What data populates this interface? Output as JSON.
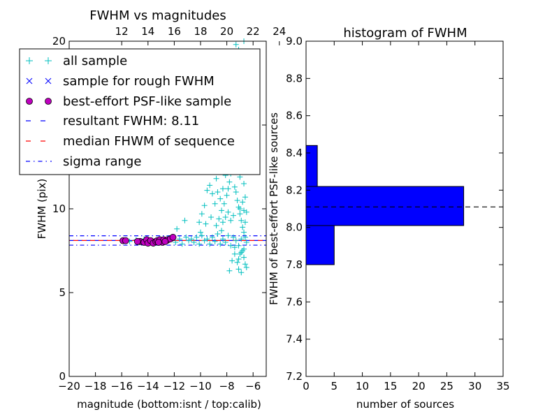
{
  "chart_data": [
    {
      "type": "scatter",
      "title": "FWHM vs magnitudes",
      "xlabel": "magnitude (bottom:isnt / top:calib)",
      "ylabel": "FWHM (pix)",
      "xlim": [
        -20,
        -5
      ],
      "ylim": [
        0,
        20
      ],
      "xticks": [
        -20,
        -18,
        -16,
        -14,
        -12,
        -10,
        -8,
        -6
      ],
      "xtick_labels": [
        "−20",
        "−18",
        "−16",
        "−14",
        "−12",
        "−10",
        "−8",
        "−6"
      ],
      "yticks": [
        0,
        5,
        10,
        15,
        20
      ],
      "ytick_labels": [
        "0",
        "5",
        "10",
        "15",
        "20"
      ],
      "top_axis": {
        "offset": 28,
        "ticks": [
          12,
          14,
          16,
          18,
          20,
          22,
          24
        ],
        "tick_labels": [
          "12",
          "14",
          "16",
          "18",
          "20",
          "22",
          "24"
        ]
      },
      "grid": false,
      "legend_position": "top-left",
      "legend": [
        {
          "label": "all sample",
          "marker": "+",
          "color": "#00bfbf"
        },
        {
          "label": "sample for rough FWHM",
          "marker": "x",
          "color": "#0000ff"
        },
        {
          "label": "best-effort PSF-like sample",
          "marker": "o",
          "color": "#bf00bf"
        },
        {
          "label": "resultant FWHM: 8.11",
          "line": "dashed",
          "color": "#0000ff"
        },
        {
          "label": "median FHWM of sequence",
          "line": "dashed",
          "color": "#ff0000"
        },
        {
          "label": "sigma range",
          "line": "dashdot",
          "color": "#0000ff"
        }
      ],
      "hlines": {
        "resultant_fwhm": 8.11,
        "median_fwhm": 8.11,
        "sigma_range": [
          7.83,
          8.39
        ]
      },
      "series": [
        {
          "name": "all sample",
          "color": "#00bfbf",
          "marker": "+",
          "points": [
            [
              -15.9,
              8.1
            ],
            [
              -15.4,
              8.05
            ],
            [
              -14.9,
              8.15
            ],
            [
              -14.6,
              8.0
            ],
            [
              -14.3,
              8.2
            ],
            [
              -14.0,
              8.05
            ],
            [
              -13.7,
              8.1
            ],
            [
              -13.4,
              8.1
            ],
            [
              -13.1,
              8.2
            ],
            [
              -12.8,
              8.15
            ],
            [
              -12.5,
              8.25
            ],
            [
              -12.2,
              8.3
            ],
            [
              -11.9,
              8.0
            ],
            [
              -11.6,
              8.2
            ],
            [
              -11.4,
              7.9
            ],
            [
              -11.1,
              8.3
            ],
            [
              -10.9,
              8.1
            ],
            [
              -10.7,
              8.2
            ],
            [
              -10.5,
              8.0
            ],
            [
              -10.3,
              8.3
            ],
            [
              -10.1,
              7.9
            ],
            [
              -9.9,
              8.4
            ],
            [
              -9.7,
              8.1
            ],
            [
              -9.5,
              8.2
            ],
            [
              -9.3,
              7.9
            ],
            [
              -9.1,
              8.3
            ],
            [
              -8.9,
              8.05
            ],
            [
              -8.7,
              8.5
            ],
            [
              -8.5,
              7.9
            ],
            [
              -8.3,
              8.2
            ],
            [
              -8.1,
              8.0
            ],
            [
              -7.9,
              8.4
            ],
            [
              -7.7,
              7.8
            ],
            [
              -7.5,
              8.3
            ],
            [
              -7.3,
              8.1
            ],
            [
              -7.1,
              7.8
            ],
            [
              -6.9,
              8.2
            ],
            [
              -6.8,
              7.5
            ],
            [
              -6.7,
              7.1
            ],
            [
              -6.6,
              6.7
            ],
            [
              -7.0,
              7.3
            ],
            [
              -7.2,
              6.8
            ],
            [
              -7.4,
              7.7
            ],
            [
              -7.6,
              6.9
            ],
            [
              -7.8,
              6.3
            ],
            [
              -6.5,
              6.5
            ],
            [
              -6.9,
              6.2
            ],
            [
              -7.1,
              6.4
            ],
            [
              -11.8,
              8.8
            ],
            [
              -11.2,
              9.3
            ],
            [
              -10.0,
              8.6
            ],
            [
              -9.6,
              9.1
            ],
            [
              -9.2,
              9.5
            ],
            [
              -8.8,
              9.0
            ],
            [
              -8.6,
              9.4
            ],
            [
              -8.4,
              9.9
            ],
            [
              -8.2,
              10.3
            ],
            [
              -8.0,
              10.8
            ],
            [
              -7.9,
              11.2
            ],
            [
              -7.8,
              11.6
            ],
            [
              -7.7,
              12.1
            ],
            [
              -7.6,
              12.5
            ],
            [
              -7.5,
              12.9
            ],
            [
              -7.4,
              11.3
            ],
            [
              -7.3,
              11.0
            ],
            [
              -7.2,
              10.5
            ],
            [
              -7.1,
              10.1
            ],
            [
              -7.0,
              9.7
            ],
            [
              -6.9,
              9.3
            ],
            [
              -6.8,
              8.9
            ],
            [
              -6.7,
              8.6
            ],
            [
              -6.6,
              9.2
            ],
            [
              -6.5,
              9.8
            ],
            [
              -7.3,
              12.4
            ],
            [
              -7.1,
              12.8
            ],
            [
              -6.9,
              13.2
            ],
            [
              -6.8,
              12.2
            ],
            [
              -6.7,
              11.5
            ],
            [
              -6.6,
              10.7
            ],
            [
              -7.8,
              13.5
            ],
            [
              -7.6,
              14.0
            ],
            [
              -7.4,
              13.7
            ],
            [
              -7.2,
              13.1
            ],
            [
              -7.0,
              11.9
            ],
            [
              -8.1,
              12.0
            ],
            [
              -8.3,
              11.2
            ],
            [
              -8.5,
              10.6
            ],
            [
              -8.7,
              11.0
            ],
            [
              -8.9,
              10.3
            ],
            [
              -9.1,
              10.9
            ],
            [
              -9.3,
              11.4
            ],
            [
              -9.5,
              11.1
            ],
            [
              -9.7,
              10.2
            ],
            [
              -9.9,
              9.7
            ],
            [
              -10.1,
              9.2
            ],
            [
              -8.0,
              13.0
            ],
            [
              -7.9,
              13.8
            ],
            [
              -7.7,
              14.5
            ],
            [
              -7.5,
              14.9
            ],
            [
              -7.3,
              14.3
            ],
            [
              -7.1,
              14.6
            ],
            [
              -6.9,
              14.1
            ],
            [
              -7.6,
              15.4
            ],
            [
              -7.4,
              15.8
            ],
            [
              -7.2,
              15.1
            ],
            [
              -7.8,
              15.6
            ],
            [
              -8.0,
              14.4
            ],
            [
              -8.2,
              13.2
            ],
            [
              -8.4,
              12.6
            ],
            [
              -8.6,
              12.3
            ],
            [
              -8.8,
              11.8
            ],
            [
              -7.0,
              10.0
            ],
            [
              -6.8,
              10.4
            ],
            [
              -6.7,
              9.9
            ],
            [
              -7.5,
              9.6
            ],
            [
              -7.7,
              9.3
            ],
            [
              -7.9,
              9.8
            ],
            [
              -8.1,
              9.5
            ],
            [
              -8.3,
              9.2
            ],
            [
              -6.6,
              8.3
            ],
            [
              -6.5,
              8.0
            ],
            [
              -6.7,
              7.6
            ],
            [
              -6.9,
              7.4
            ],
            [
              -7.1,
              7.0
            ],
            [
              -7.4,
              7.3
            ],
            [
              -8.4,
              8.7
            ],
            [
              -7.3,
              19.8
            ],
            [
              -7.1,
              19.5
            ],
            [
              -6.9,
              19.1
            ],
            [
              -6.7,
              20.0
            ],
            [
              -7.5,
              19.3
            ],
            [
              -7.0,
              18.6
            ]
          ]
        },
        {
          "name": "best-effort PSF-like sample",
          "color": "#bf00bf",
          "marker": "o",
          "points": [
            [
              -15.9,
              8.1
            ],
            [
              -15.7,
              8.1
            ],
            [
              -14.6,
              8.05
            ],
            [
              -14.3,
              8.0
            ],
            [
              -14.1,
              8.15
            ],
            [
              -14.0,
              7.95
            ],
            [
              -13.8,
              8.1
            ],
            [
              -13.6,
              7.95
            ],
            [
              -13.4,
              8.05
            ],
            [
              -13.3,
              8.1
            ],
            [
              -13.1,
              8.15
            ],
            [
              -12.9,
              8.0
            ],
            [
              -12.8,
              8.15
            ],
            [
              -12.6,
              8.1
            ],
            [
              -12.5,
              8.15
            ],
            [
              -12.3,
              8.2
            ],
            [
              -12.1,
              8.3
            ],
            [
              -14.8,
              8.05
            ],
            [
              -13.2,
              8.0
            ],
            [
              -12.7,
              8.05
            ]
          ]
        }
      ]
    },
    {
      "type": "bar",
      "orientation": "horizontal",
      "title": "histogram of FWHM",
      "xlabel": "number of sources",
      "ylabel": "FWHM of best-effort PSF-like sources",
      "xlim": [
        0,
        35
      ],
      "ylim": [
        7.2,
        9.0
      ],
      "xticks": [
        0,
        5,
        10,
        15,
        20,
        25,
        30,
        35
      ],
      "xtick_labels": [
        "0",
        "5",
        "10",
        "15",
        "20",
        "25",
        "30",
        "35"
      ],
      "yticks": [
        7.2,
        7.4,
        7.6,
        7.8,
        8.0,
        8.2,
        8.4,
        8.6,
        8.8,
        9.0
      ],
      "ytick_labels": [
        "7.2",
        "7.4",
        "7.6",
        "7.8",
        "8.0",
        "8.2",
        "8.4",
        "8.6",
        "8.8",
        "9.0"
      ],
      "color": "#0000ff",
      "bins": [
        {
          "low": 7.8,
          "high": 8.01,
          "count": 5
        },
        {
          "low": 8.01,
          "high": 8.22,
          "count": 28
        },
        {
          "low": 8.22,
          "high": 8.44,
          "count": 2
        }
      ],
      "hline": 8.11,
      "grid": false
    }
  ]
}
